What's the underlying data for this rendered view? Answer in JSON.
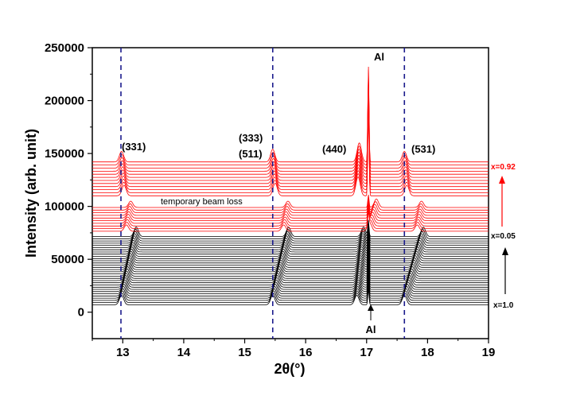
{
  "chart_data": {
    "type": "line",
    "title": "",
    "xlabel": "2θ(°)",
    "ylabel": "Intensity (arb. unit)",
    "xlim": [
      12.5,
      19
    ],
    "ylim": [
      -25000,
      250000
    ],
    "x_ticks": [
      "13",
      "14",
      "15",
      "16",
      "17",
      "18",
      "19"
    ],
    "y_ticks": [
      "0",
      "50000",
      "100000",
      "150000",
      "200000",
      "250000"
    ],
    "grid": false,
    "legend": "none",
    "peak_markers": [
      12.97,
      15.46,
      17.62
    ],
    "peak_labels": [
      "(331)",
      "(333)",
      "(511)",
      "(440)",
      "(531)"
    ],
    "annotations": [
      "Al",
      "Al",
      "temporary beam loss"
    ],
    "composition_labels": [
      "x=0.92",
      "x=0.05",
      "x=1.0"
    ],
    "series": [
      {
        "color": "#000000",
        "count": 32,
        "baseline_first": 7000,
        "baseline_last": 71500,
        "peaks": [
          {
            "x_first": 12.98,
            "x_last": 13.22,
            "height": 9000
          },
          {
            "x_first": 15.46,
            "x_last": 15.72,
            "height": 9000
          },
          {
            "x_first": 16.84,
            "x_last": 16.95,
            "height": 9000
          },
          {
            "x_first": 17.62,
            "x_last": 17.93,
            "height": 9000
          }
        ],
        "al_peak": {
          "x": 17.03,
          "height": 15000
        }
      },
      {
        "color": "#ff0000",
        "count": 10,
        "baseline_first": 76500,
        "baseline_last": 99000,
        "peaks": [
          {
            "x_first": 13.06,
            "x_last": 13.13,
            "height": 6000
          },
          {
            "x_first": 15.64,
            "x_last": 15.71,
            "height": 6000
          },
          {
            "x_first": 17.05,
            "x_last": 17.16,
            "height": 8000
          },
          {
            "x_first": 17.83,
            "x_last": 17.9,
            "height": 6000
          }
        ],
        "al_peak": {
          "x": 17.03,
          "height": 12000
        }
      },
      {
        "color": "#ff0000",
        "count": 12,
        "baseline_first": 110000,
        "baseline_last": 142000,
        "peaks": [
          {
            "x_first": 13.02,
            "x_last": 12.98,
            "height": 10000
          },
          {
            "x_first": 15.5,
            "x_last": 15.46,
            "height": 12000
          },
          {
            "x_first": 16.86,
            "x_last": 16.88,
            "height": 18000
          },
          {
            "x_first": 17.66,
            "x_last": 17.62,
            "height": 10000
          }
        ],
        "al_peak": {
          "x": 17.03,
          "height": 90000
        }
      }
    ]
  }
}
